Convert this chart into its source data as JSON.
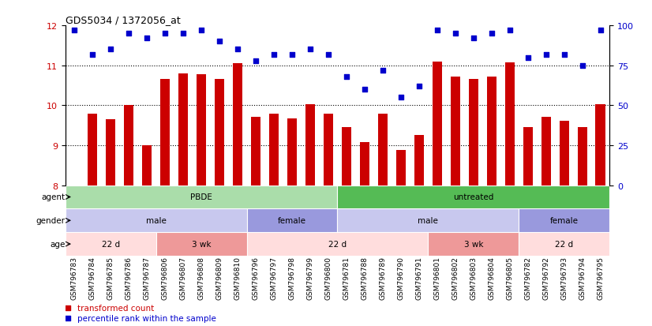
{
  "title": "GDS5034 / 1372056_at",
  "samples": [
    "GSM796783",
    "GSM796784",
    "GSM796785",
    "GSM796786",
    "GSM796787",
    "GSM796806",
    "GSM796807",
    "GSM796808",
    "GSM796809",
    "GSM796810",
    "GSM796796",
    "GSM796797",
    "GSM796798",
    "GSM796799",
    "GSM796800",
    "GSM796781",
    "GSM796788",
    "GSM796789",
    "GSM796790",
    "GSM796791",
    "GSM796801",
    "GSM796802",
    "GSM796803",
    "GSM796804",
    "GSM796805",
    "GSM796782",
    "GSM796792",
    "GSM796793",
    "GSM796794",
    "GSM796795"
  ],
  "bar_values": [
    8.0,
    9.78,
    9.65,
    10.0,
    9.0,
    10.65,
    10.8,
    10.78,
    10.65,
    11.05,
    9.72,
    9.78,
    9.68,
    10.02,
    9.78,
    9.45,
    9.08,
    9.78,
    8.88,
    9.25,
    11.1,
    10.72,
    10.65,
    10.72,
    11.08,
    9.45,
    9.72,
    9.62,
    9.45,
    10.02
  ],
  "percentile_values": [
    97,
    82,
    85,
    95,
    92,
    95,
    95,
    97,
    90,
    85,
    78,
    82,
    82,
    85,
    82,
    68,
    60,
    72,
    55,
    62,
    97,
    95,
    92,
    95,
    97,
    80,
    82,
    82,
    75,
    97
  ],
  "bar_color": "#cc0000",
  "percentile_color": "#0000cc",
  "ylim_left": [
    8,
    12
  ],
  "ylim_right": [
    0,
    100
  ],
  "yticks_left": [
    8,
    9,
    10,
    11,
    12
  ],
  "yticks_right": [
    0,
    25,
    50,
    75,
    100
  ],
  "agent_groups": [
    {
      "label": "PBDE",
      "start": 0,
      "end": 15,
      "color": "#aaddaa"
    },
    {
      "label": "untreated",
      "start": 15,
      "end": 30,
      "color": "#55bb55"
    }
  ],
  "gender_groups": [
    {
      "label": "male",
      "start": 0,
      "end": 10,
      "color": "#c8c8ee"
    },
    {
      "label": "female",
      "start": 10,
      "end": 15,
      "color": "#9999dd"
    },
    {
      "label": "male",
      "start": 15,
      "end": 25,
      "color": "#c8c8ee"
    },
    {
      "label": "female",
      "start": 25,
      "end": 30,
      "color": "#9999dd"
    }
  ],
  "age_groups": [
    {
      "label": "22 d",
      "start": 0,
      "end": 5,
      "color": "#ffdddd"
    },
    {
      "label": "3 wk",
      "start": 5,
      "end": 10,
      "color": "#ee9999"
    },
    {
      "label": "22 d",
      "start": 10,
      "end": 20,
      "color": "#ffdddd"
    },
    {
      "label": "3 wk",
      "start": 20,
      "end": 25,
      "color": "#ee9999"
    },
    {
      "label": "22 d",
      "start": 25,
      "end": 30,
      "color": "#ffdddd"
    }
  ],
  "row_labels": [
    "agent",
    "gender",
    "age"
  ],
  "legend_red_label": "transformed count",
  "legend_blue_label": "percentile rank within the sample"
}
